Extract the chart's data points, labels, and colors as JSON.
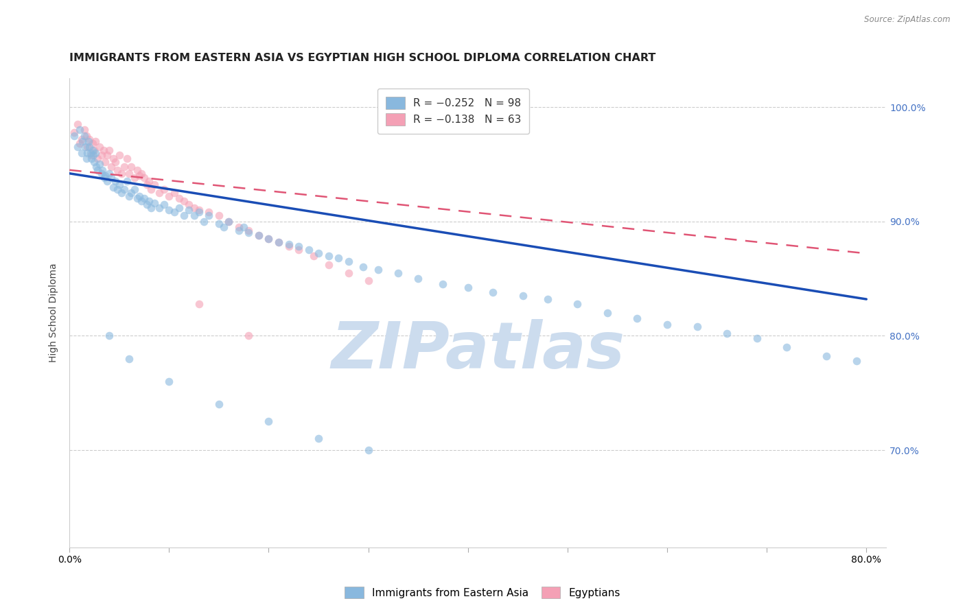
{
  "title": "IMMIGRANTS FROM EASTERN ASIA VS EGYPTIAN HIGH SCHOOL DIPLOMA CORRELATION CHART",
  "source": "Source: ZipAtlas.com",
  "ylabel": "High School Diploma",
  "x_range": [
    0.0,
    0.82
  ],
  "y_range": [
    0.615,
    1.025
  ],
  "blue_color": "#89b8de",
  "pink_color": "#f4a0b5",
  "trend_blue_color": "#1a4db5",
  "trend_pink_color": "#e05575",
  "grid_color": "#cccccc",
  "watermark_color": "#ccdcee",
  "title_fontsize": 11.5,
  "axis_label_fontsize": 10,
  "tick_fontsize": 10,
  "legend_fontsize": 11,
  "blue_scatter_x": [
    0.005,
    0.008,
    0.01,
    0.012,
    0.013,
    0.015,
    0.016,
    0.017,
    0.018,
    0.019,
    0.02,
    0.021,
    0.022,
    0.023,
    0.024,
    0.025,
    0.026,
    0.027,
    0.028,
    0.03,
    0.032,
    0.033,
    0.035,
    0.036,
    0.038,
    0.04,
    0.042,
    0.044,
    0.046,
    0.048,
    0.05,
    0.052,
    0.055,
    0.058,
    0.06,
    0.062,
    0.065,
    0.068,
    0.07,
    0.072,
    0.075,
    0.078,
    0.08,
    0.082,
    0.085,
    0.09,
    0.095,
    0.1,
    0.105,
    0.11,
    0.115,
    0.12,
    0.125,
    0.13,
    0.135,
    0.14,
    0.15,
    0.155,
    0.16,
    0.17,
    0.175,
    0.18,
    0.19,
    0.2,
    0.21,
    0.22,
    0.23,
    0.24,
    0.25,
    0.26,
    0.27,
    0.28,
    0.295,
    0.31,
    0.33,
    0.35,
    0.375,
    0.4,
    0.425,
    0.455,
    0.48,
    0.51,
    0.54,
    0.57,
    0.6,
    0.63,
    0.66,
    0.69,
    0.72,
    0.76,
    0.79,
    0.04,
    0.06,
    0.1,
    0.15,
    0.2,
    0.25,
    0.3
  ],
  "blue_scatter_y": [
    0.975,
    0.965,
    0.98,
    0.96,
    0.97,
    0.975,
    0.965,
    0.955,
    0.96,
    0.97,
    0.965,
    0.96,
    0.955,
    0.962,
    0.958,
    0.952,
    0.96,
    0.948,
    0.945,
    0.95,
    0.942,
    0.945,
    0.938,
    0.94,
    0.935,
    0.942,
    0.938,
    0.93,
    0.935,
    0.928,
    0.932,
    0.925,
    0.928,
    0.935,
    0.922,
    0.925,
    0.928,
    0.92,
    0.922,
    0.918,
    0.92,
    0.915,
    0.918,
    0.912,
    0.916,
    0.912,
    0.915,
    0.91,
    0.908,
    0.912,
    0.905,
    0.91,
    0.905,
    0.908,
    0.9,
    0.905,
    0.898,
    0.895,
    0.9,
    0.892,
    0.895,
    0.89,
    0.888,
    0.885,
    0.882,
    0.88,
    0.878,
    0.875,
    0.872,
    0.87,
    0.868,
    0.865,
    0.86,
    0.858,
    0.855,
    0.85,
    0.845,
    0.842,
    0.838,
    0.835,
    0.832,
    0.828,
    0.82,
    0.815,
    0.81,
    0.808,
    0.802,
    0.798,
    0.79,
    0.782,
    0.778,
    0.8,
    0.78,
    0.76,
    0.74,
    0.725,
    0.71,
    0.7
  ],
  "pink_scatter_x": [
    0.005,
    0.008,
    0.01,
    0.012,
    0.015,
    0.017,
    0.018,
    0.02,
    0.022,
    0.023,
    0.025,
    0.026,
    0.028,
    0.03,
    0.032,
    0.034,
    0.036,
    0.038,
    0.04,
    0.042,
    0.044,
    0.046,
    0.048,
    0.05,
    0.052,
    0.055,
    0.058,
    0.06,
    0.062,
    0.065,
    0.068,
    0.07,
    0.072,
    0.075,
    0.078,
    0.08,
    0.082,
    0.085,
    0.09,
    0.095,
    0.1,
    0.105,
    0.11,
    0.115,
    0.12,
    0.125,
    0.13,
    0.14,
    0.15,
    0.16,
    0.17,
    0.18,
    0.19,
    0.2,
    0.21,
    0.22,
    0.23,
    0.245,
    0.26,
    0.28,
    0.3,
    0.13,
    0.18
  ],
  "pink_scatter_y": [
    0.978,
    0.985,
    0.968,
    0.972,
    0.98,
    0.975,
    0.965,
    0.972,
    0.958,
    0.968,
    0.962,
    0.97,
    0.955,
    0.965,
    0.958,
    0.962,
    0.952,
    0.958,
    0.962,
    0.948,
    0.955,
    0.952,
    0.945,
    0.958,
    0.942,
    0.948,
    0.955,
    0.942,
    0.948,
    0.938,
    0.945,
    0.94,
    0.942,
    0.938,
    0.932,
    0.935,
    0.928,
    0.932,
    0.925,
    0.928,
    0.922,
    0.925,
    0.92,
    0.918,
    0.915,
    0.912,
    0.91,
    0.908,
    0.905,
    0.9,
    0.895,
    0.892,
    0.888,
    0.885,
    0.882,
    0.878,
    0.875,
    0.87,
    0.862,
    0.855,
    0.848,
    0.828,
    0.8
  ],
  "blue_trend_x": [
    0.0,
    0.8
  ],
  "blue_trend_y": [
    0.942,
    0.832
  ],
  "pink_trend_x": [
    0.0,
    0.8
  ],
  "pink_trend_y": [
    0.945,
    0.872
  ],
  "blue_scatter_size": 70,
  "pink_scatter_size": 70,
  "background_color": "#ffffff",
  "y_ticks": [
    0.7,
    0.8,
    0.9,
    1.0
  ],
  "y_tick_labels": [
    "70.0%",
    "80.0%",
    "90.0%",
    "100.0%"
  ],
  "x_ticks_show": [
    0.0,
    0.8
  ],
  "x_ticks_all": [
    0.0,
    0.1,
    0.2,
    0.3,
    0.4,
    0.5,
    0.6,
    0.7,
    0.8
  ],
  "bottom_legend": [
    "Immigrants from Eastern Asia",
    "Egyptians"
  ]
}
